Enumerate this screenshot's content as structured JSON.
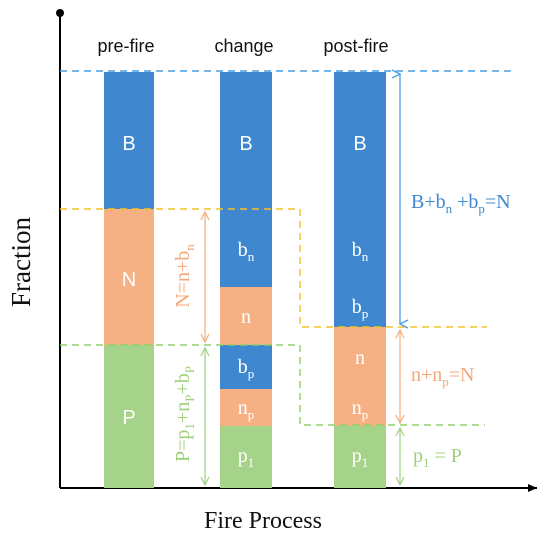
{
  "colors": {
    "blue": "#3f88d0",
    "orange": "#f5b183",
    "green": "#a6d38a",
    "blue_line": "#4a9ee0",
    "orange_line": "#f2c12e",
    "green_line": "#8fd06a",
    "orange_text": "#f3a77a",
    "green_text": "#9fd07a",
    "axis": "#000000"
  },
  "axes": {
    "ylabel": "Fraction",
    "xlabel": "Fire Process"
  },
  "columns": [
    {
      "title": "pre-fire"
    },
    {
      "title": "change"
    },
    {
      "title": "post-fire"
    }
  ],
  "bars": {
    "pre": {
      "B": "B",
      "N": "N",
      "P": "P"
    },
    "change": {
      "B": "B",
      "bn": "b",
      "bn_sub": "n",
      "n": "n",
      "bp": "b",
      "bp_sub": "p",
      "np": "n",
      "np_sub": "p",
      "p1": "p",
      "p1_sub": "1"
    },
    "post": {
      "B": "B",
      "bn": "b",
      "bn_sub": "n",
      "bp": "b",
      "bp_sub": "p",
      "n": "n",
      "np": "n",
      "np_sub": "p",
      "p1": "p",
      "p1_sub": "1"
    }
  },
  "equations": {
    "blue": {
      "b1": "B+b",
      "s1": "n",
      "m": " +b",
      "s2": "p",
      "e": "=N"
    },
    "orange_left": {
      "a": "N=n+b",
      "s": "n"
    },
    "green_left": {
      "a": "P=p",
      "s1": "1",
      "b": "+n",
      "s2": "P",
      "c": "+b",
      "s3": "P"
    },
    "orange_right": {
      "a": "n+n",
      "s": "p",
      "b": "=N"
    },
    "green_right": {
      "a": "p",
      "s": "1",
      "b": " = P"
    }
  }
}
